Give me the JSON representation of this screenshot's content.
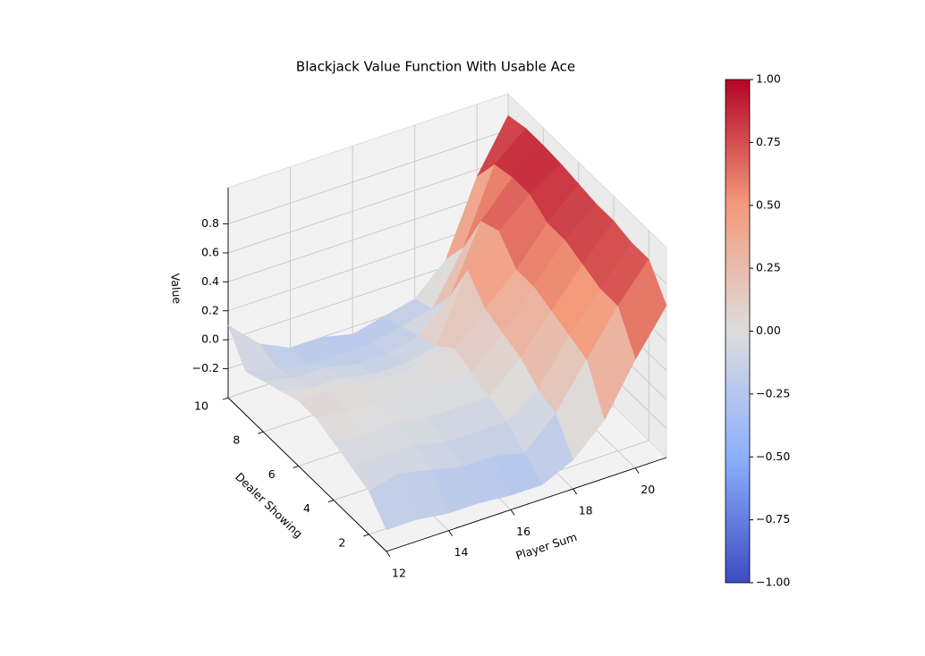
{
  "chart_data": {
    "type": "surface",
    "title": "Blackjack Value Function With Usable Ace",
    "xlabel": "Player Sum",
    "ylabel": "Dealer Showing",
    "zlabel": "Value",
    "x": [
      12,
      13,
      14,
      15,
      16,
      17,
      18,
      19,
      20,
      21
    ],
    "y": [
      1,
      2,
      3,
      4,
      5,
      6,
      7,
      8,
      9,
      10
    ],
    "z": [
      [
        -0.25,
        -0.25,
        -0.28,
        -0.28,
        -0.3,
        -0.3,
        -0.2,
        0.0,
        0.35,
        0.65
      ],
      [
        -0.1,
        -0.05,
        -0.1,
        -0.15,
        -0.15,
        -0.2,
        0.0,
        0.3,
        0.6,
        0.85
      ],
      [
        -0.05,
        -0.05,
        -0.05,
        -0.1,
        -0.1,
        -0.1,
        0.05,
        0.35,
        0.6,
        0.85
      ],
      [
        0.0,
        -0.02,
        0.0,
        -0.05,
        -0.05,
        -0.05,
        0.15,
        0.4,
        0.65,
        0.88
      ],
      [
        0.05,
        0.02,
        0.0,
        0.0,
        0.0,
        0.0,
        0.2,
        0.45,
        0.7,
        0.88
      ],
      [
        0.05,
        0.05,
        0.02,
        0.0,
        0.02,
        0.05,
        0.25,
        0.45,
        0.7,
        0.9
      ],
      [
        0.0,
        -0.05,
        -0.05,
        -0.1,
        -0.1,
        -0.05,
        0.4,
        0.6,
        0.78,
        0.92
      ],
      [
        -0.05,
        -0.1,
        -0.1,
        -0.15,
        -0.15,
        -0.1,
        0.1,
        0.55,
        0.78,
        0.93
      ],
      [
        -0.1,
        -0.15,
        -0.2,
        -0.2,
        -0.2,
        -0.15,
        -0.1,
        0.25,
        0.75,
        0.93
      ],
      [
        0.1,
        -0.1,
        -0.2,
        -0.2,
        -0.25,
        -0.2,
        -0.15,
        0.05,
        0.55,
        0.9
      ]
    ],
    "xlim": [
      12,
      21
    ],
    "ylim": [
      1,
      10
    ],
    "zlim": [
      -0.4,
      1.05
    ],
    "xticks": [
      12,
      14,
      16,
      18,
      20
    ],
    "yticks": [
      2,
      4,
      6,
      8,
      10
    ],
    "zticks": [
      {
        "value": -0.2,
        "label": "−0.2"
      },
      {
        "value": 0,
        "label": "0.0"
      },
      0.2,
      0.4,
      0.6,
      0.8
    ],
    "colormap": "coolwarm",
    "clim": [
      -1,
      1
    ],
    "cticks": [
      {
        "value": -1,
        "label": "−1.00"
      },
      {
        "value": -0.75,
        "label": "−0.75"
      },
      {
        "value": -0.5,
        "label": "−0.50"
      },
      {
        "value": -0.25,
        "label": "−0.25"
      },
      {
        "value": 0,
        "label": "0.00"
      },
      {
        "value": 0.25,
        "label": "0.25"
      },
      {
        "value": 0.5,
        "label": "0.50"
      },
      {
        "value": 0.75,
        "label": "0.75"
      },
      {
        "value": 1,
        "label": "1.00"
      }
    ],
    "grid": true
  }
}
